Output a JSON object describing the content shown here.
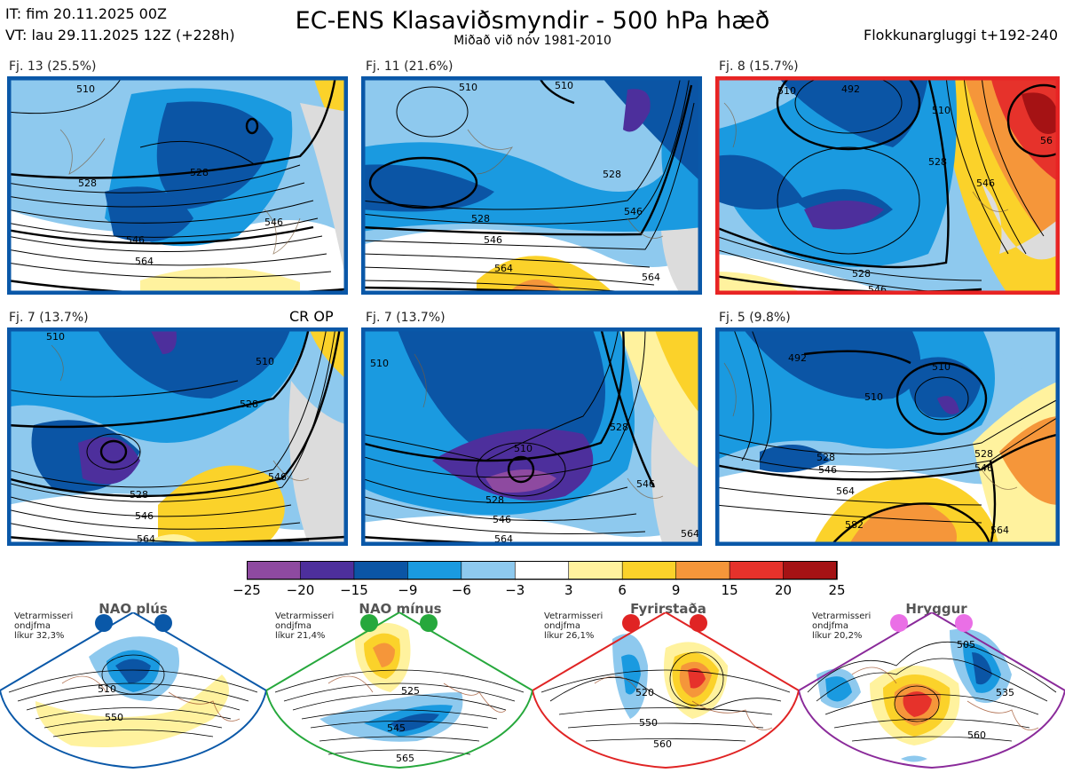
{
  "header": {
    "it_line": "IT: fim 20.11.2025 00Z",
    "vt_line": "VT: lau 29.11.2025 12Z  (+228h)",
    "title": "EC-ENS Klasaviðsmyndir - 500 hPa hæð",
    "subtitle": "Miðað við nóv 1981-2010",
    "window": "Flokkunargluggi t+192-240",
    "op_tag": "CR OP"
  },
  "panels": [
    {
      "label": "Fj. 13 (25.5%)",
      "border": "#0a58a8",
      "contours": [
        "510",
        "528",
        "546",
        "564",
        "528",
        "546"
      ]
    },
    {
      "label": "Fj. 11 (21.6%)",
      "border": "#0a58a8",
      "contours": [
        "510",
        "510",
        "528",
        "546",
        "564",
        "528",
        "546",
        "564"
      ]
    },
    {
      "label": "Fj. 8 (15.7%)",
      "border": "#e82424",
      "contours": [
        "492",
        "510",
        "528",
        "546",
        "510",
        "528",
        "546",
        "56"
      ]
    },
    {
      "label": "Fj. 7 (13.7%)",
      "border": "#0a58a8",
      "contours": [
        "510",
        "510",
        "528",
        "546",
        "564",
        "528",
        "546"
      ]
    },
    {
      "label": "Fj. 7 (13.7%)",
      "border": "#0a58a8",
      "contours": [
        "510",
        "510",
        "528",
        "546",
        "564",
        "528",
        "546",
        "564"
      ]
    },
    {
      "label": "Fj. 5 (9.8%)",
      "border": "#0a58a8",
      "contours": [
        "492",
        "510",
        "510",
        "528",
        "546",
        "564",
        "582",
        "546",
        "528",
        "564"
      ]
    }
  ],
  "colorbar": {
    "colors": [
      "#8e4aa0",
      "#4d2f9c",
      "#0b55a5",
      "#1a9ae0",
      "#8ec9ee",
      "#ffffff",
      "#fff29e",
      "#fbd22a",
      "#f5963a",
      "#e6322b",
      "#a51214"
    ],
    "ticks": [
      "−25",
      "−20",
      "−15",
      "−9",
      "−6",
      "−3",
      "3",
      "6",
      "9",
      "15",
      "20",
      "25"
    ]
  },
  "regimes": [
    {
      "title": "NAO plús",
      "note": [
        "Vetrarmisseri",
        "ondjfma",
        "líkur 32,3%"
      ],
      "color": "#0a58a8",
      "dot": "#0a58a8",
      "contours": [
        "510",
        "550"
      ]
    },
    {
      "title": "NAO mínus",
      "note": [
        "Vetrarmisseri",
        "ondjfma",
        "líkur 21,4%"
      ],
      "color": "#26a83c",
      "dot": "#26a83c",
      "contours": [
        "525",
        "545",
        "565"
      ]
    },
    {
      "title": "Fyrirstaða",
      "note": [
        "Vetrarmisseri",
        "ondjfma",
        "líkur 26,1%"
      ],
      "color": "#e02424",
      "dot": "#e02424",
      "contours": [
        "520",
        "550",
        "560"
      ]
    },
    {
      "title": "Hryggur",
      "note": [
        "Vetrarmisseri",
        "ondjfma",
        "líkur 20,2%"
      ],
      "color": "#8a2a9a",
      "dot": "#ea6fe6",
      "contours": [
        "505",
        "535",
        "560"
      ]
    }
  ]
}
